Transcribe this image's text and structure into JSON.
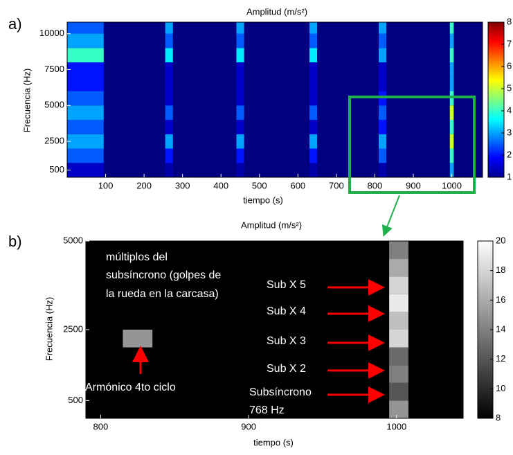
{
  "chart_data": [
    {
      "type": "heatmap",
      "panel_label": "a)",
      "title": "Amplitud (m/s²)",
      "x_label": "tiempo (s)",
      "y_label": "Frecuencia (Hz)",
      "colormap": "jet",
      "xlim": [
        0,
        1080
      ],
      "xticks": [
        100,
        200,
        300,
        400,
        500,
        600,
        700,
        800,
        900,
        1000
      ],
      "ylim": [
        0,
        10800
      ],
      "yticks": [
        500,
        2500,
        5000,
        7500,
        10000
      ],
      "zlim": [
        1,
        8
      ],
      "zticks": [
        1,
        2,
        3,
        4,
        5,
        6,
        7,
        8
      ],
      "x_start": [
        0,
        255,
        440,
        630,
        810,
        995
      ],
      "x_end": [
        95,
        275,
        460,
        650,
        830,
        1005
      ],
      "y_bins": [
        0,
        1000,
        2000,
        3000,
        4000,
        5000,
        6000,
        7000,
        8000,
        9000,
        10000,
        11000
      ],
      "z": [
        [
          1.5,
          2.5,
          3,
          2.5,
          3,
          2.5,
          2,
          2,
          4,
          3,
          2.5
        ],
        [
          1.3,
          2,
          3,
          1.5,
          2.5,
          1.5,
          1.5,
          1.5,
          3.5,
          2.5,
          3
        ],
        [
          1.3,
          2,
          3,
          1.5,
          2.5,
          1.5,
          1.5,
          1.5,
          3.5,
          2.5,
          3
        ],
        [
          1.3,
          2,
          3,
          1.5,
          2.5,
          1.5,
          1.5,
          1.5,
          3.5,
          2.5,
          3
        ],
        [
          1.3,
          2.5,
          3,
          2,
          2.5,
          2,
          1.5,
          1.5,
          3,
          2.5,
          3
        ],
        [
          3,
          4,
          5,
          4,
          5,
          4,
          3,
          3,
          4,
          3,
          4
        ]
      ]
    },
    {
      "type": "heatmap",
      "panel_label": "b)",
      "title": "Amplitud (m/s²)",
      "x_label": "tiempo (s)",
      "y_label": "Frecuencia (Hz)",
      "colormap": "gray",
      "xlim": [
        790,
        1045
      ],
      "xticks": [
        800,
        900,
        1000
      ],
      "ylim": [
        0,
        5000
      ],
      "yticks": [
        500,
        2500,
        5000
      ],
      "zlim": [
        8,
        20
      ],
      "zticks": [
        8,
        10,
        12,
        14,
        16,
        18,
        20
      ],
      "x_start": [
        815,
        995
      ],
      "x_end": [
        835,
        1008
      ],
      "y_bins": [
        0,
        500,
        1000,
        1500,
        2000,
        2500,
        3000,
        3500,
        4000,
        4500,
        5000
      ],
      "z": [
        [
          8,
          8,
          8,
          8,
          15,
          8,
          8,
          8,
          8,
          8
        ],
        [
          15,
          12,
          14,
          13,
          18,
          17,
          19,
          18,
          16,
          14
        ]
      ],
      "annotations": [
        "múltiplos del",
        "subsíncrono (golpes de",
        "la rueda en la carcasa)",
        "Sub X 5",
        "Sub X 4",
        "Sub X 3",
        "Sub X 2",
        "Subsíncrono",
        "768 Hz",
        "Armónico 4to ciclo"
      ]
    }
  ]
}
